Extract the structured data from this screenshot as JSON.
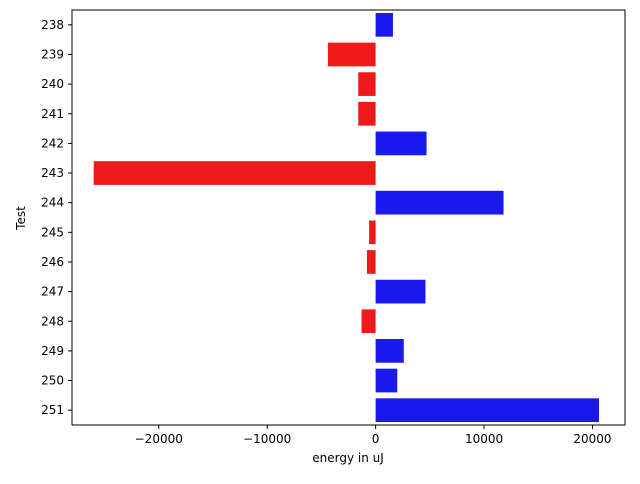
{
  "chart_data": {
    "type": "bar",
    "orientation": "horizontal",
    "title": "",
    "xlabel": "energy in uJ",
    "ylabel": "Test",
    "xlim": [
      -28000,
      23000
    ],
    "xticks": [
      -20000,
      -10000,
      0,
      10000,
      20000
    ],
    "xtick_labels": [
      "−20000",
      "−10000",
      "0",
      "10000",
      "20000"
    ],
    "categories": [
      "238",
      "239",
      "240",
      "241",
      "242",
      "243",
      "244",
      "245",
      "246",
      "247",
      "248",
      "249",
      "250",
      "251"
    ],
    "values": [
      1600,
      -4400,
      -1600,
      -1600,
      4700,
      -26000,
      11800,
      -600,
      -800,
      4600,
      -1300,
      2600,
      2000,
      20600
    ],
    "colors": {
      "positive": "#1a1aee",
      "negative": "#ee1a1a"
    },
    "grid": false,
    "legend": null
  }
}
